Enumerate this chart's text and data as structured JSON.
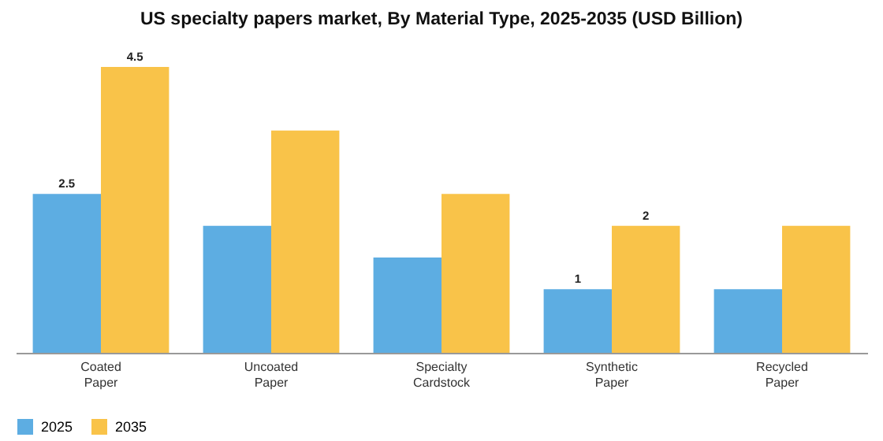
{
  "chart_data": {
    "type": "bar",
    "title": "US specialty papers market, By Material Type, 2025-2035 (USD Billion)",
    "categories": [
      "Coated Paper",
      "Uncoated Paper",
      "Specialty Cardstock",
      "Synthetic Paper",
      "Recycled Paper"
    ],
    "series": [
      {
        "name": "2025",
        "color": "#5dade2",
        "values": [
          2.5,
          2.0,
          1.5,
          1.0,
          1.0
        ],
        "value_labels": [
          "2.5",
          null,
          null,
          "1",
          null
        ]
      },
      {
        "name": "2035",
        "color": "#f9c349",
        "values": [
          4.5,
          3.5,
          2.5,
          2.0,
          2.0
        ],
        "value_labels": [
          "4.5",
          null,
          null,
          "2",
          null
        ]
      }
    ],
    "legend": "bottom"
  }
}
